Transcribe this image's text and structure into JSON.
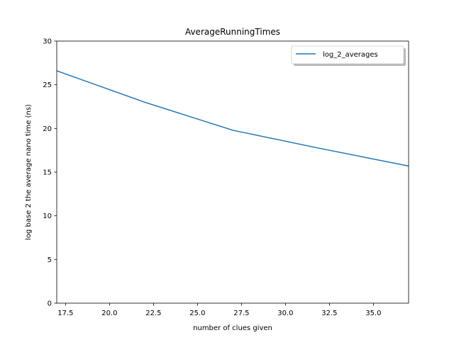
{
  "chart_data": {
    "type": "line",
    "title": "AverageRunningTimes",
    "xlabel": "number of clues given",
    "ylabel": "log base 2 the average nano time (ns)",
    "xlim": [
      17,
      37
    ],
    "ylim": [
      0,
      30
    ],
    "x_ticks": [
      "17.5",
      "20.0",
      "22.5",
      "25.0",
      "27.5",
      "30.0",
      "32.5",
      "35.0"
    ],
    "x_tick_values": [
      17.5,
      20.0,
      22.5,
      25.0,
      27.5,
      30.0,
      32.5,
      35.0
    ],
    "y_ticks": [
      "0",
      "5",
      "10",
      "15",
      "20",
      "25",
      "30"
    ],
    "y_tick_values": [
      0,
      5,
      10,
      15,
      20,
      25,
      30
    ],
    "grid": false,
    "legend_position": "top-right",
    "series": [
      {
        "name": "log_2_averages",
        "color": "#1f77b4",
        "x": [
          17,
          22,
          27,
          32,
          37
        ],
        "y": [
          26.6,
          23.0,
          19.8,
          17.7,
          15.7
        ]
      }
    ]
  }
}
